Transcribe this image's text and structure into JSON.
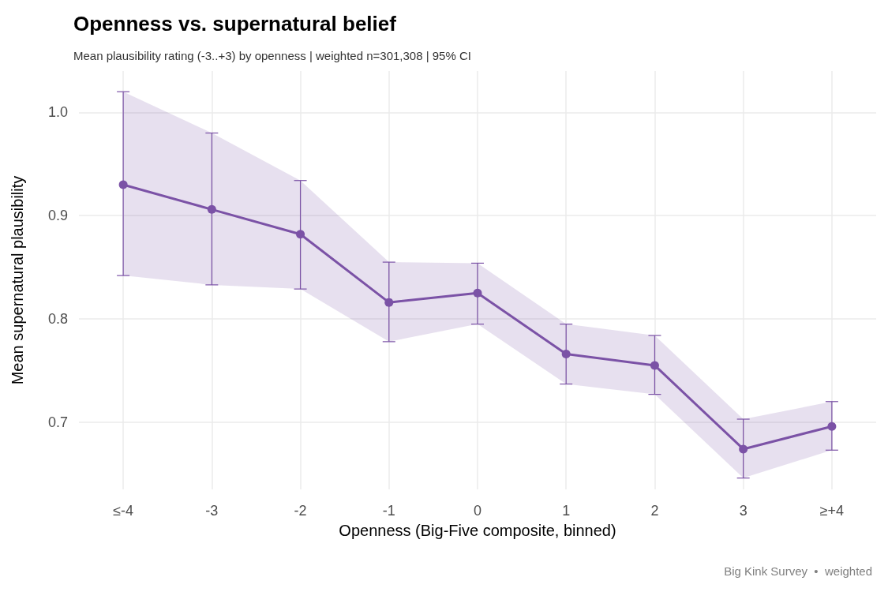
{
  "chart_data": {
    "type": "line",
    "title": "Openness vs. supernatural belief",
    "subtitle": "Mean plausibility rating (-3..+3) by openness | weighted n=301,308 | 95% CI",
    "xlabel": "Openness (Big-Five composite, binned)",
    "ylabel": "Mean supernatural plausibility",
    "annotations": [
      "Big Kink Survey  •  weighted"
    ],
    "categories": [
      "≤-4",
      "-3",
      "-2",
      "-1",
      "0",
      "1",
      "2",
      "3",
      "≥+4"
    ],
    "series": [
      {
        "color": "#7b52a6",
        "values": [
          0.93,
          0.906,
          0.882,
          0.816,
          0.825,
          0.766,
          0.755,
          0.674,
          0.696
        ],
        "errors": [
          [
            0.842,
            1.02
          ],
          [
            0.833,
            0.98
          ],
          [
            0.829,
            0.934
          ],
          [
            0.778,
            0.855
          ],
          [
            0.795,
            0.854
          ],
          [
            0.737,
            0.795
          ],
          [
            0.727,
            0.784
          ],
          [
            0.646,
            0.703
          ],
          [
            0.673,
            0.72
          ]
        ],
        "lower": [
          0.842,
          0.833,
          0.829,
          0.778,
          0.795,
          0.737,
          0.727,
          0.646,
          0.673
        ],
        "upper": [
          1.02,
          0.98,
          0.934,
          0.855,
          0.854,
          0.795,
          0.784,
          0.703,
          0.72
        ]
      }
    ],
    "ylim": [
      0.635,
      1.04
    ],
    "yticks": [
      0.7,
      0.8,
      0.9,
      {
        "value": 1,
        "label": "1.0"
      }
    ],
    "grid": true,
    "marker": "circle",
    "line_style": "solid"
  }
}
